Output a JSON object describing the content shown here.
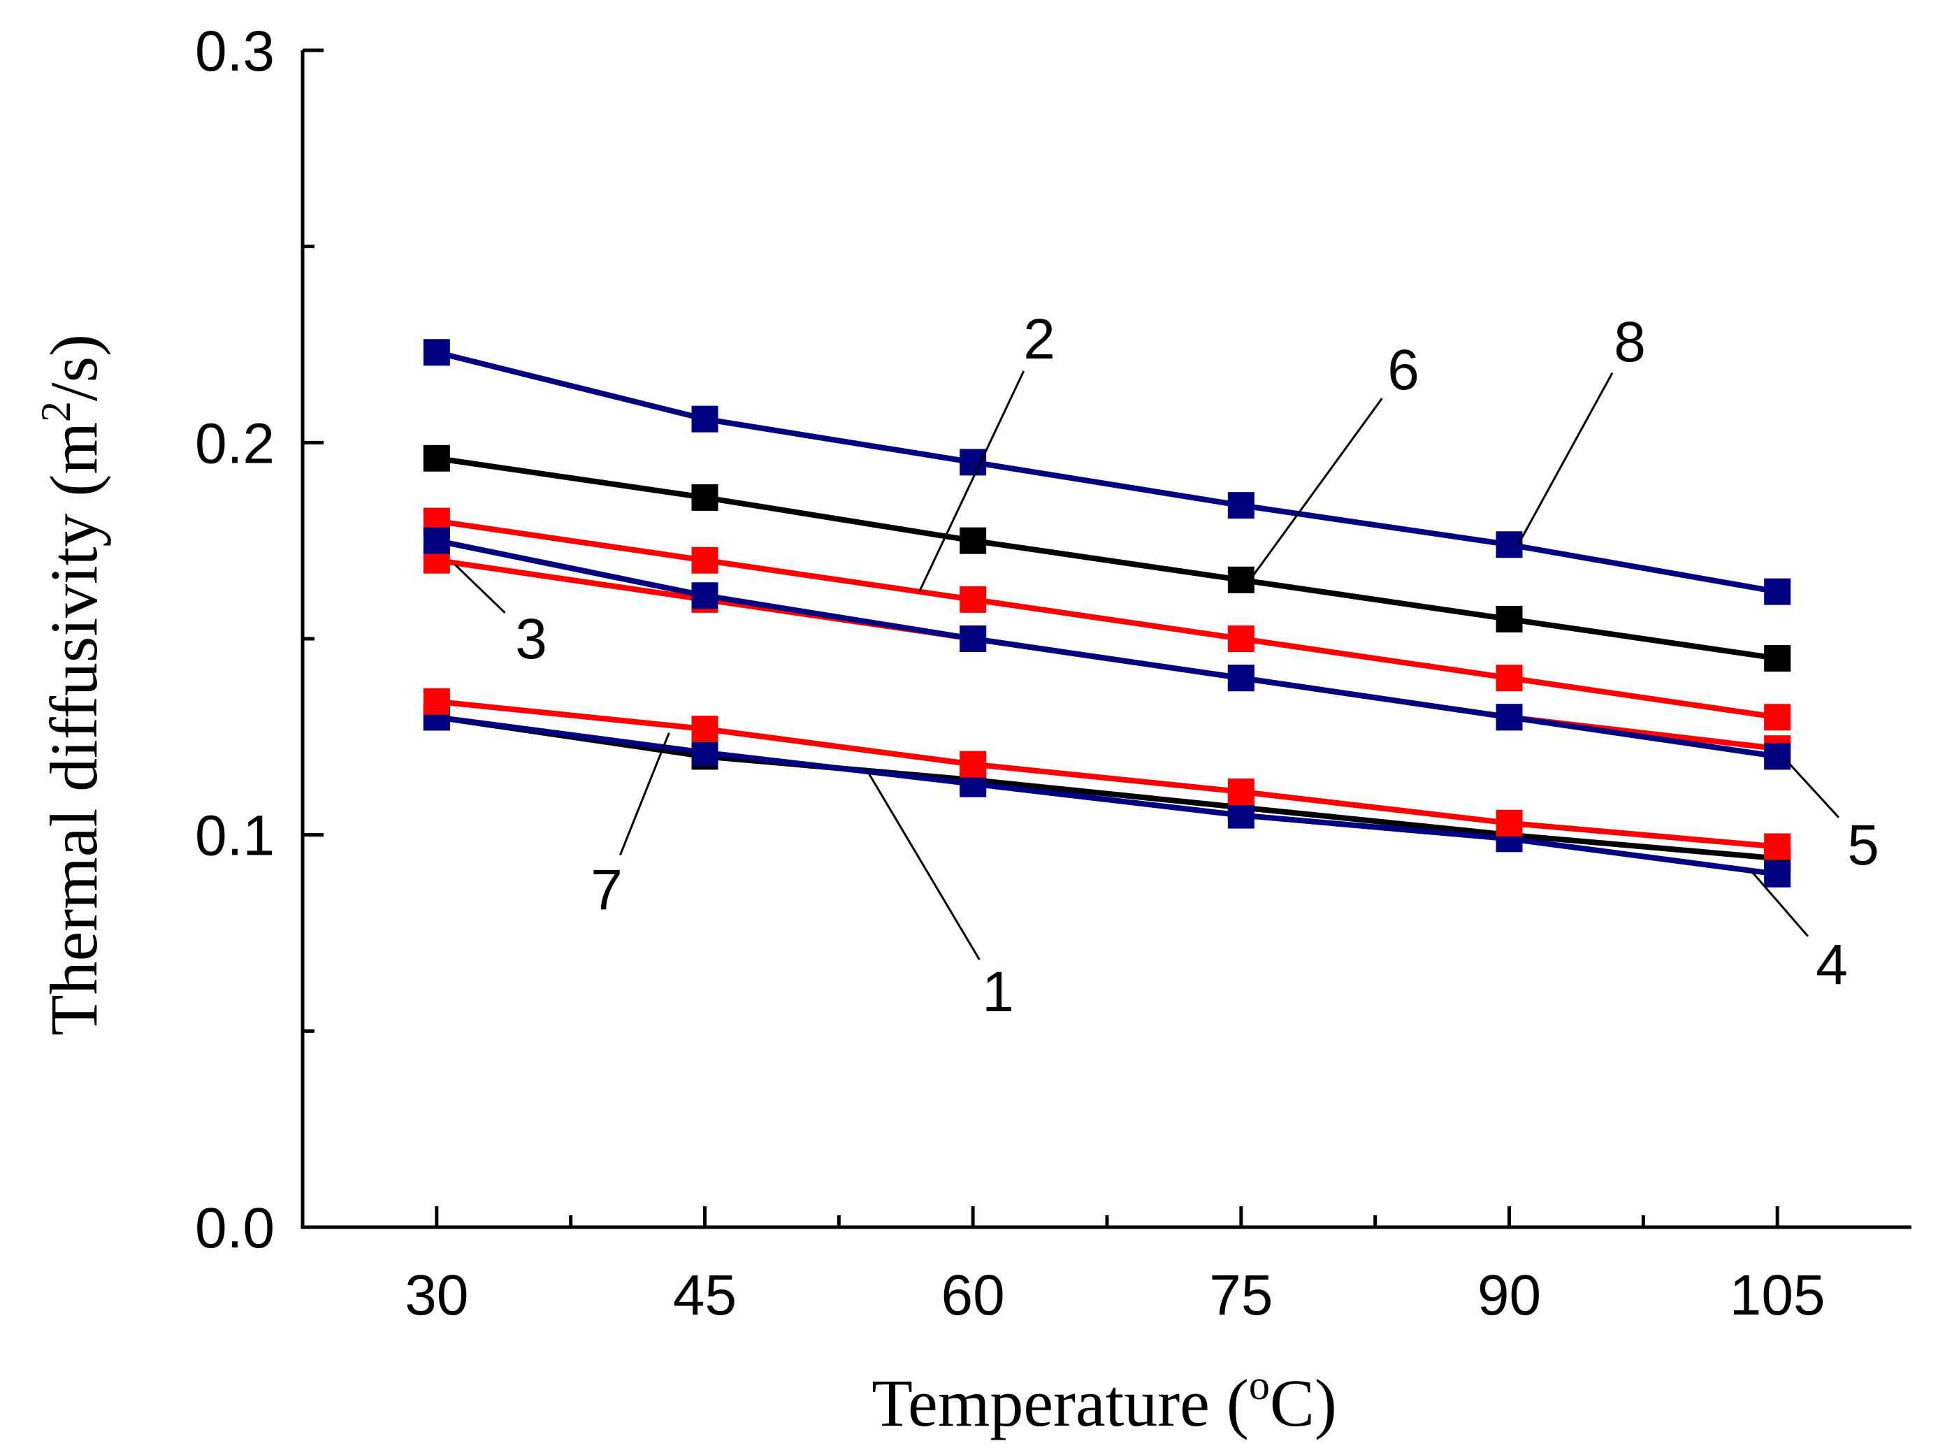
{
  "chart_data": {
    "type": "line",
    "title": "",
    "xlabel": "Temperature (oC)",
    "xlabel_parts": {
      "prefix": "Temperature (",
      "sup": "o",
      "suffix": "C)"
    },
    "ylabel": "Thermal diffusivity (m2/s)",
    "ylabel_parts": {
      "prefix": "Thermal diffusivity (m",
      "sup": "2",
      "suffix": "/s)"
    },
    "x": [
      30,
      45,
      60,
      75,
      90,
      105
    ],
    "xlim": [
      22.5,
      112.5
    ],
    "ylim": [
      0.0,
      0.3
    ],
    "x_ticks": [
      "30",
      "45",
      "60",
      "75",
      "90",
      "105"
    ],
    "y_ticks": [
      "0.0",
      "0.1",
      "0.2",
      "0.3"
    ],
    "grid": false,
    "series": [
      {
        "name": "1",
        "color": "#000000",
        "values": [
          0.13,
          0.12,
          0.114,
          0.107,
          0.1,
          0.094
        ]
      },
      {
        "name": "2",
        "color": "#ff0000",
        "values": [
          0.18,
          0.17,
          0.16,
          0.15,
          0.14,
          0.13
        ]
      },
      {
        "name": "3",
        "color": "#ff0000",
        "values": [
          0.17,
          0.16,
          0.15,
          0.14,
          0.13,
          0.122
        ]
      },
      {
        "name": "4",
        "color": "#000080",
        "values": [
          0.13,
          0.121,
          0.113,
          0.105,
          0.099,
          0.09
        ]
      },
      {
        "name": "5",
        "color": "#000080",
        "values": [
          0.175,
          0.161,
          0.15,
          0.14,
          0.13,
          0.12
        ]
      },
      {
        "name": "6",
        "color": "#000000",
        "values": [
          0.196,
          0.186,
          0.175,
          0.165,
          0.155,
          0.145
        ]
      },
      {
        "name": "7",
        "color": "#ff0000",
        "values": [
          0.134,
          0.127,
          0.118,
          0.111,
          0.103,
          0.097
        ]
      },
      {
        "name": "8",
        "color": "#000080",
        "values": [
          0.223,
          0.206,
          0.195,
          0.184,
          0.174,
          0.162
        ]
      }
    ],
    "annotations": [
      {
        "text": "1",
        "points_to": {
          "x": 54,
          "y": 0.117
        }
      },
      {
        "text": "2",
        "points_to": {
          "x": 57,
          "y": 0.162
        }
      },
      {
        "text": "3",
        "points_to": {
          "x": 31,
          "y": 0.169
        }
      },
      {
        "text": "4",
        "points_to": {
          "x": 103.5,
          "y": 0.091
        }
      },
      {
        "text": "5",
        "points_to": {
          "x": 105.5,
          "y": 0.119
        }
      },
      {
        "text": "6",
        "points_to": {
          "x": 75.5,
          "y": 0.165
        }
      },
      {
        "text": "7",
        "points_to": {
          "x": 43,
          "y": 0.126
        }
      },
      {
        "text": "8",
        "points_to": {
          "x": 90.5,
          "y": 0.174
        }
      }
    ]
  }
}
